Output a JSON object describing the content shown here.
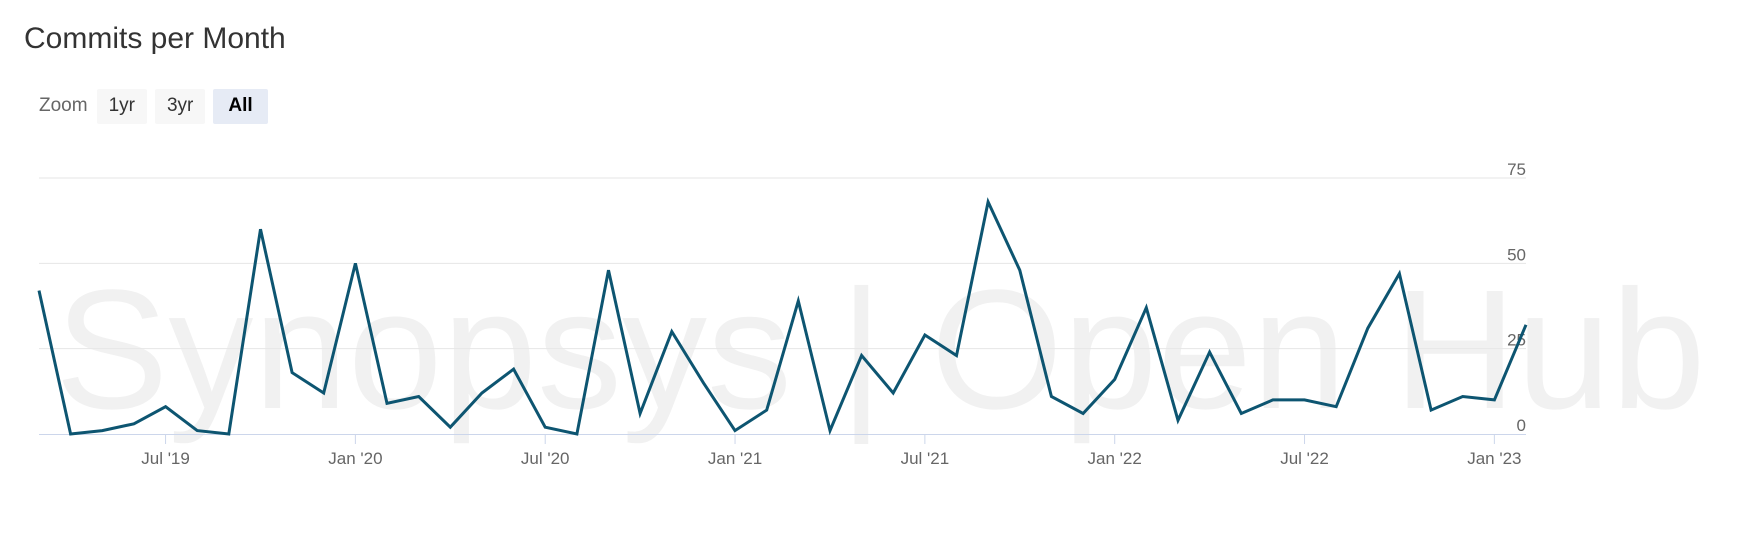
{
  "title": "Commits per Month",
  "zoom": {
    "label": "Zoom",
    "buttons": [
      "1yr",
      "3yr",
      "All"
    ],
    "active": "All"
  },
  "watermark": "Synopsys | Open Hub",
  "colors": {
    "line": "#0d5571",
    "grid": "#e6e6e6",
    "axis": "#ccd6eb",
    "watermark": "#f1f1f1"
  },
  "chart_data": {
    "type": "line",
    "title": "Commits per Month",
    "xlabel": "",
    "ylabel": "",
    "ylim": [
      0,
      75
    ],
    "yticks": [
      0,
      25,
      50,
      75
    ],
    "x_tick_labels": [
      "Jul '19",
      "Jan '20",
      "Jul '20",
      "Jan '21",
      "Jul '21",
      "Jan '22",
      "Jul '22",
      "Jan '23"
    ],
    "x_tick_dates": [
      "2019-07",
      "2020-01",
      "2020-07",
      "2021-01",
      "2021-07",
      "2022-01",
      "2022-07",
      "2023-01"
    ],
    "grid": true,
    "legend": "none",
    "series": [
      {
        "x": [
          "2019-03",
          "2019-04",
          "2019-05",
          "2019-06",
          "2019-07",
          "2019-08",
          "2019-09",
          "2019-10",
          "2019-11",
          "2019-12",
          "2020-01",
          "2020-02",
          "2020-03",
          "2020-04",
          "2020-05",
          "2020-06",
          "2020-07",
          "2020-08",
          "2020-09",
          "2020-10",
          "2020-11",
          "2020-12",
          "2021-01",
          "2021-02",
          "2021-03",
          "2021-04",
          "2021-05",
          "2021-06",
          "2021-07",
          "2021-08",
          "2021-09",
          "2021-10",
          "2021-11",
          "2021-12",
          "2022-01",
          "2022-02",
          "2022-03",
          "2022-04",
          "2022-05",
          "2022-06",
          "2022-07",
          "2022-08",
          "2022-09",
          "2022-10",
          "2022-11",
          "2022-12",
          "2023-01",
          "2023-02"
        ],
        "values": [
          42,
          0,
          1,
          3,
          8,
          1,
          0,
          60,
          18,
          12,
          50,
          9,
          11,
          2,
          12,
          19,
          2,
          0,
          48,
          6,
          30,
          15,
          1,
          7,
          39,
          1,
          23,
          12,
          29,
          23,
          68,
          48,
          11,
          6,
          16,
          37,
          4,
          24,
          6,
          10,
          10,
          8,
          31,
          47,
          7,
          11,
          10,
          32
        ]
      }
    ]
  }
}
